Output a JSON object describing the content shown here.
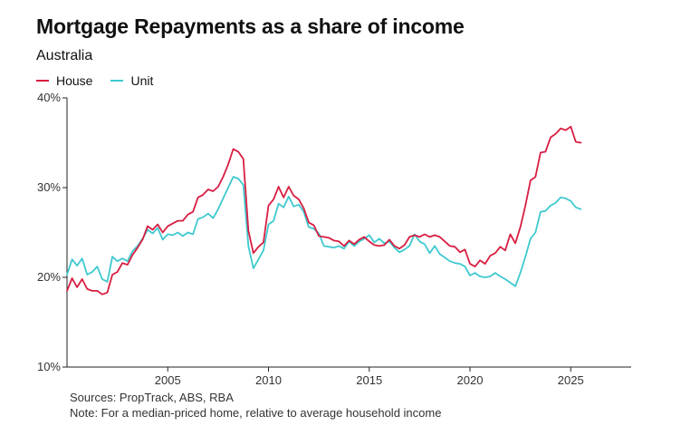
{
  "title": "Mortgage Repayments as a share of income",
  "subtitle": "Australia",
  "sources": "Sources: PropTrack, ABS, RBA",
  "note": "Note: For a median-priced home, relative to average household income",
  "colors": {
    "house": "#d81e42",
    "unit": "#3ec9cf",
    "axis": "#222222",
    "text": "#333333"
  },
  "chart_data": {
    "type": "line",
    "title": "Mortgage Repayments as a share of income",
    "subtitle": "Australia",
    "xlabel": "",
    "ylabel": "",
    "xlim": [
      2000,
      2028
    ],
    "ylim": [
      10,
      40
    ],
    "x_ticks": [
      2005,
      2010,
      2015,
      2020,
      2025
    ],
    "x_tick_labels": [
      "2005",
      "2010",
      "2015",
      "2020",
      "2025"
    ],
    "y_ticks": [
      10,
      20,
      30,
      40
    ],
    "y_tick_labels": [
      "10%",
      "20%",
      "30%",
      "40%"
    ],
    "grid": false,
    "legend_position": "top-left",
    "series": [
      {
        "name": "House",
        "color": "#d81e42",
        "points": [
          [
            2000.0,
            18.5
          ],
          [
            2000.25,
            19.9
          ],
          [
            2000.5,
            18.9
          ],
          [
            2000.75,
            19.8
          ],
          [
            2001.0,
            18.7
          ],
          [
            2001.25,
            18.5
          ],
          [
            2001.5,
            18.5
          ],
          [
            2001.75,
            18.1
          ],
          [
            2002.0,
            18.3
          ],
          [
            2002.25,
            20.3
          ],
          [
            2002.5,
            20.6
          ],
          [
            2002.75,
            21.6
          ],
          [
            2003.0,
            21.4
          ],
          [
            2003.25,
            22.5
          ],
          [
            2003.5,
            23.3
          ],
          [
            2003.75,
            24.2
          ],
          [
            2004.0,
            25.7
          ],
          [
            2004.25,
            25.3
          ],
          [
            2004.5,
            25.9
          ],
          [
            2004.75,
            25.0
          ],
          [
            2005.0,
            25.7
          ],
          [
            2005.25,
            26.0
          ],
          [
            2005.5,
            26.3
          ],
          [
            2005.75,
            26.3
          ],
          [
            2006.0,
            27.0
          ],
          [
            2006.25,
            27.3
          ],
          [
            2006.5,
            28.9
          ],
          [
            2006.75,
            29.2
          ],
          [
            2007.0,
            29.8
          ],
          [
            2007.25,
            29.6
          ],
          [
            2007.5,
            30.1
          ],
          [
            2007.75,
            31.2
          ],
          [
            2008.0,
            32.6
          ],
          [
            2008.25,
            34.3
          ],
          [
            2008.5,
            34.0
          ],
          [
            2008.75,
            33.2
          ],
          [
            2009.0,
            25.2
          ],
          [
            2009.25,
            22.7
          ],
          [
            2009.5,
            23.4
          ],
          [
            2009.75,
            23.9
          ],
          [
            2010.0,
            28.0
          ],
          [
            2010.25,
            28.7
          ],
          [
            2010.5,
            30.1
          ],
          [
            2010.75,
            28.9
          ],
          [
            2011.0,
            30.1
          ],
          [
            2011.25,
            29.1
          ],
          [
            2011.5,
            28.7
          ],
          [
            2011.75,
            27.7
          ],
          [
            2012.0,
            26.1
          ],
          [
            2012.25,
            25.8
          ],
          [
            2012.5,
            24.6
          ],
          [
            2012.75,
            24.5
          ],
          [
            2013.0,
            24.4
          ],
          [
            2013.25,
            24.1
          ],
          [
            2013.5,
            24.0
          ],
          [
            2013.75,
            23.5
          ],
          [
            2014.0,
            24.1
          ],
          [
            2014.25,
            23.7
          ],
          [
            2014.5,
            24.2
          ],
          [
            2014.75,
            24.5
          ],
          [
            2015.0,
            24.0
          ],
          [
            2015.25,
            23.6
          ],
          [
            2015.5,
            23.5
          ],
          [
            2015.75,
            23.6
          ],
          [
            2016.0,
            24.2
          ],
          [
            2016.25,
            23.5
          ],
          [
            2016.5,
            23.2
          ],
          [
            2016.75,
            23.6
          ],
          [
            2017.0,
            24.5
          ],
          [
            2017.25,
            24.7
          ],
          [
            2017.5,
            24.5
          ],
          [
            2017.75,
            24.8
          ],
          [
            2018.0,
            24.5
          ],
          [
            2018.25,
            24.7
          ],
          [
            2018.5,
            24.5
          ],
          [
            2018.75,
            24.0
          ],
          [
            2019.0,
            23.5
          ],
          [
            2019.25,
            23.4
          ],
          [
            2019.5,
            22.8
          ],
          [
            2019.75,
            23.1
          ],
          [
            2020.0,
            21.5
          ],
          [
            2020.25,
            21.2
          ],
          [
            2020.5,
            21.9
          ],
          [
            2020.75,
            21.5
          ],
          [
            2021.0,
            22.4
          ],
          [
            2021.25,
            22.7
          ],
          [
            2021.5,
            23.4
          ],
          [
            2021.75,
            23.0
          ],
          [
            2022.0,
            24.8
          ],
          [
            2022.25,
            23.8
          ],
          [
            2022.5,
            25.6
          ],
          [
            2022.75,
            28.0
          ],
          [
            2023.0,
            30.8
          ],
          [
            2023.25,
            31.2
          ],
          [
            2023.5,
            33.9
          ],
          [
            2023.75,
            34.0
          ],
          [
            2024.0,
            35.6
          ],
          [
            2024.25,
            36.0
          ],
          [
            2024.5,
            36.6
          ],
          [
            2024.75,
            36.4
          ],
          [
            2025.0,
            36.8
          ],
          [
            2025.25,
            35.1
          ],
          [
            2025.5,
            35.0
          ]
        ]
      },
      {
        "name": "Unit",
        "color": "#3ec9cf",
        "points": [
          [
            2000.0,
            20.3
          ],
          [
            2000.25,
            22.0
          ],
          [
            2000.5,
            21.3
          ],
          [
            2000.75,
            22.1
          ],
          [
            2001.0,
            20.3
          ],
          [
            2001.25,
            20.6
          ],
          [
            2001.5,
            21.2
          ],
          [
            2001.75,
            19.8
          ],
          [
            2002.0,
            19.5
          ],
          [
            2002.25,
            22.3
          ],
          [
            2002.5,
            21.8
          ],
          [
            2002.75,
            22.1
          ],
          [
            2003.0,
            21.8
          ],
          [
            2003.25,
            22.9
          ],
          [
            2003.5,
            23.5
          ],
          [
            2003.75,
            24.3
          ],
          [
            2004.0,
            25.3
          ],
          [
            2004.25,
            24.9
          ],
          [
            2004.5,
            25.5
          ],
          [
            2004.75,
            24.2
          ],
          [
            2005.0,
            24.8
          ],
          [
            2005.25,
            24.7
          ],
          [
            2005.5,
            25.0
          ],
          [
            2005.75,
            24.6
          ],
          [
            2006.0,
            25.0
          ],
          [
            2006.25,
            24.8
          ],
          [
            2006.5,
            26.5
          ],
          [
            2006.75,
            26.7
          ],
          [
            2007.0,
            27.1
          ],
          [
            2007.25,
            26.6
          ],
          [
            2007.5,
            27.6
          ],
          [
            2007.75,
            28.8
          ],
          [
            2008.0,
            30.0
          ],
          [
            2008.25,
            31.2
          ],
          [
            2008.5,
            31.0
          ],
          [
            2008.75,
            30.3
          ],
          [
            2009.0,
            23.5
          ],
          [
            2009.25,
            21.0
          ],
          [
            2009.5,
            22.0
          ],
          [
            2009.75,
            23.0
          ],
          [
            2010.0,
            25.9
          ],
          [
            2010.25,
            26.3
          ],
          [
            2010.5,
            28.2
          ],
          [
            2010.75,
            27.8
          ],
          [
            2011.0,
            29.0
          ],
          [
            2011.25,
            27.9
          ],
          [
            2011.5,
            28.1
          ],
          [
            2011.75,
            27.3
          ],
          [
            2012.0,
            25.6
          ],
          [
            2012.25,
            25.4
          ],
          [
            2012.5,
            24.9
          ],
          [
            2012.75,
            23.5
          ],
          [
            2013.0,
            23.4
          ],
          [
            2013.25,
            23.3
          ],
          [
            2013.5,
            23.5
          ],
          [
            2013.75,
            23.2
          ],
          [
            2014.0,
            24.0
          ],
          [
            2014.25,
            23.5
          ],
          [
            2014.5,
            24.0
          ],
          [
            2014.75,
            24.3
          ],
          [
            2015.0,
            24.7
          ],
          [
            2015.25,
            23.9
          ],
          [
            2015.5,
            24.3
          ],
          [
            2015.75,
            23.8
          ],
          [
            2016.0,
            24.0
          ],
          [
            2016.25,
            23.3
          ],
          [
            2016.5,
            22.8
          ],
          [
            2016.75,
            23.1
          ],
          [
            2017.0,
            23.5
          ],
          [
            2017.25,
            24.8
          ],
          [
            2017.5,
            24.0
          ],
          [
            2017.75,
            23.7
          ],
          [
            2018.0,
            22.7
          ],
          [
            2018.25,
            23.5
          ],
          [
            2018.5,
            22.6
          ],
          [
            2018.75,
            22.2
          ],
          [
            2019.0,
            21.8
          ],
          [
            2019.25,
            21.6
          ],
          [
            2019.5,
            21.5
          ],
          [
            2019.75,
            21.2
          ],
          [
            2020.0,
            20.2
          ],
          [
            2020.25,
            20.5
          ],
          [
            2020.5,
            20.1
          ],
          [
            2020.75,
            20.0
          ],
          [
            2021.0,
            20.1
          ],
          [
            2021.25,
            20.5
          ],
          [
            2021.5,
            20.1
          ],
          [
            2021.75,
            19.8
          ],
          [
            2022.0,
            19.4
          ],
          [
            2022.25,
            19.0
          ],
          [
            2022.5,
            20.5
          ],
          [
            2022.75,
            22.3
          ],
          [
            2023.0,
            24.3
          ],
          [
            2023.25,
            25.0
          ],
          [
            2023.5,
            27.3
          ],
          [
            2023.75,
            27.4
          ],
          [
            2024.0,
            28.0
          ],
          [
            2024.25,
            28.3
          ],
          [
            2024.5,
            28.9
          ],
          [
            2024.75,
            28.8
          ],
          [
            2025.0,
            28.5
          ],
          [
            2025.25,
            27.8
          ],
          [
            2025.5,
            27.6
          ]
        ]
      }
    ]
  }
}
